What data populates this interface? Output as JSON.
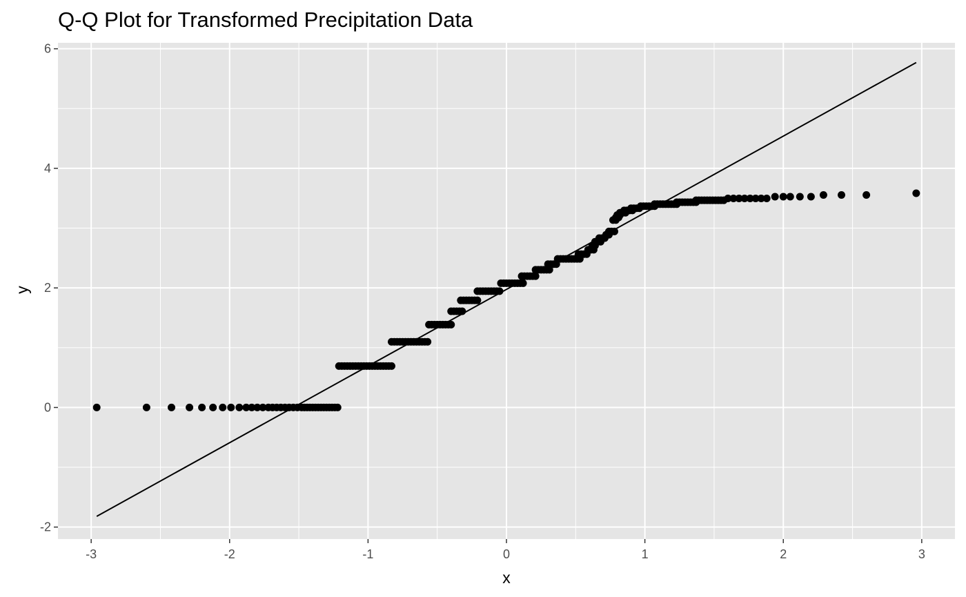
{
  "chart_data": {
    "type": "scatter",
    "title": "Q-Q Plot for Transformed Precipitation Data",
    "xlabel": "x",
    "ylabel": "y",
    "xlim": [
      -3.24,
      3.24
    ],
    "ylim": [
      -2.2,
      6.1
    ],
    "x_ticks": [
      -3,
      -2,
      -1,
      0,
      1,
      2,
      3
    ],
    "x_tick_labels": [
      "-3",
      "-2",
      "-1",
      "0",
      "1",
      "2",
      "3"
    ],
    "y_ticks": [
      -2,
      0,
      2,
      4,
      6
    ],
    "y_tick_labels": [
      "-2",
      "0",
      "2",
      "4",
      "6"
    ],
    "grid": true,
    "colors": {
      "panel_background": "#e5e5e5",
      "grid_major": "#ffffff",
      "points": "#000000",
      "reference_line": "#000000"
    },
    "reference_line": {
      "x": [
        -2.96,
        2.96
      ],
      "y": [
        -1.82,
        5.77
      ]
    },
    "series": [
      {
        "segments": [
          {
            "y": 0.0,
            "x": [
              -2.96,
              -2.6,
              -2.42,
              -2.29,
              -2.2,
              -2.12,
              -2.05,
              -1.99,
              -1.93,
              -1.88,
              -1.84,
              -1.8,
              -1.76,
              -1.72,
              -1.69,
              -1.66,
              -1.63,
              -1.6,
              -1.57,
              -1.54,
              -1.51,
              -1.48,
              -1.46,
              -1.44,
              -1.42,
              -1.4,
              -1.38,
              -1.36,
              -1.34,
              -1.32,
              -1.3,
              -1.28,
              -1.26,
              -1.24,
              -1.22
            ]
          },
          {
            "y": 0.693,
            "x_from": -1.21,
            "x_to": -0.83,
            "step": 0.02
          },
          {
            "y": 1.099,
            "x_from": -0.83,
            "x_to": -0.57,
            "step": 0.02
          },
          {
            "y": 1.386,
            "x_from": -0.56,
            "x_to": -0.4,
            "step": 0.02
          },
          {
            "y": 1.609,
            "x_from": -0.4,
            "x_to": -0.33,
            "step": 0.02
          },
          {
            "y": 1.792,
            "x_from": -0.33,
            "x_to": -0.21,
            "step": 0.02
          },
          {
            "y": 1.946,
            "x_from": -0.21,
            "x_to": -0.04,
            "step": 0.02
          },
          {
            "y": 2.079,
            "x_from": -0.04,
            "x_to": 0.11,
            "step": 0.02
          },
          {
            "y": 2.197,
            "x_from": 0.11,
            "x_to": 0.2,
            "step": 0.02
          },
          {
            "y": 2.303,
            "x_from": 0.21,
            "x_to": 0.3,
            "step": 0.02
          },
          {
            "y": 2.398,
            "x_from": 0.3,
            "x_to": 0.36,
            "step": 0.02
          },
          {
            "y": 2.485,
            "x_from": 0.37,
            "x_to": 0.52,
            "step": 0.02
          },
          {
            "y": 2.565,
            "x_from": 0.52,
            "x_to": 0.59,
            "step": 0.02
          },
          {
            "y": 2.639,
            "x_from": 0.59,
            "x_to": 0.62,
            "step": 0.02
          },
          {
            "y": 2.708,
            "x_from": 0.62,
            "x_to": 0.64,
            "step": 0.02
          },
          {
            "y": 2.773,
            "x_from": 0.64,
            "x_to": 0.67,
            "step": 0.02
          },
          {
            "y": 2.833,
            "x_from": 0.67,
            "x_to": 0.72,
            "step": 0.02
          },
          {
            "y": 2.89,
            "x_from": 0.72,
            "x_to": 0.74,
            "step": 0.02
          },
          {
            "y": 2.944,
            "x_from": 0.74,
            "x_to": 0.77,
            "step": 0.02
          },
          {
            "y": 3.135,
            "x_from": 0.77,
            "x_to": 0.79,
            "step": 0.02
          },
          {
            "y": 3.178,
            "x_from": 0.79,
            "x_to": 0.8,
            "step": 0.02
          },
          {
            "y": 3.219,
            "x_from": 0.8,
            "x_to": 0.82,
            "step": 0.02
          },
          {
            "y": 3.258,
            "x_from": 0.82,
            "x_to": 0.85,
            "step": 0.02
          },
          {
            "y": 3.296,
            "x_from": 0.85,
            "x_to": 0.9,
            "step": 0.02
          },
          {
            "y": 3.332,
            "x_from": 0.9,
            "x_to": 0.97,
            "step": 0.02
          },
          {
            "y": 3.367,
            "x_from": 0.97,
            "x_to": 1.07,
            "step": 0.02
          },
          {
            "y": 3.401,
            "x_from": 1.07,
            "x_to": 1.23,
            "step": 0.02
          },
          {
            "y": 3.434,
            "x_from": 1.23,
            "x_to": 1.37,
            "step": 0.02
          },
          {
            "y": 3.466,
            "x_from": 1.37,
            "x_to": 1.57,
            "step": 0.02
          },
          {
            "y": 3.497,
            "x": [
              1.6,
              1.64,
              1.68,
              1.72,
              1.76,
              1.8,
              1.84,
              1.88
            ]
          },
          {
            "y": 3.526,
            "x": [
              1.94,
              2.0,
              2.05,
              2.12,
              2.2
            ]
          },
          {
            "y": 3.555,
            "x": [
              2.29,
              2.42,
              2.6
            ]
          },
          {
            "y": 3.584,
            "x": [
              2.96
            ]
          }
        ]
      }
    ]
  }
}
